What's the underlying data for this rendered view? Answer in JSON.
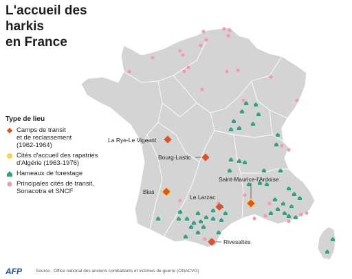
{
  "title_line1": "L'accueil des harkis",
  "title_line2": "en France",
  "legend": {
    "title": "Type de lieu",
    "items": [
      {
        "shape": "diamond",
        "color": "#d9532b",
        "line1": "Camps de transit",
        "line2": "et de reclassement",
        "line3": "(1962-1964)"
      },
      {
        "shape": "circle",
        "color": "#f6d55c",
        "line1": "Cités d'accueil des rapatriés",
        "line2": "d'Algérie (1963-1976)",
        "line3": ""
      },
      {
        "shape": "house",
        "color": "#3a9e85",
        "line1": "Hameaux de forestage",
        "line2": "",
        "line3": ""
      },
      {
        "shape": "circle",
        "color": "#ef9ab8",
        "line1": "Principales cités de transit,",
        "line2": "Sonacotra et SNCF",
        "line3": ""
      }
    ]
  },
  "places": [
    {
      "name": "La Rye-Le Vigeant"
    },
    {
      "name": "Bourg-Lastic"
    },
    {
      "name": "Saint-Maurice-l'Ardoise"
    },
    {
      "name": "Bias"
    },
    {
      "name": "Le Larzac"
    },
    {
      "name": "Rivesaltes"
    }
  ],
  "colors": {
    "land": "#d4d4d4",
    "border": "#ffffff",
    "camp": "#d9532b",
    "cite": "#f6d55c",
    "hameau": "#3a9e85",
    "transit": "#ef9ab8"
  },
  "source": "Source : Office national des anciens combattants et victimes de guerre (ONACVG)",
  "brand": "AFP"
}
